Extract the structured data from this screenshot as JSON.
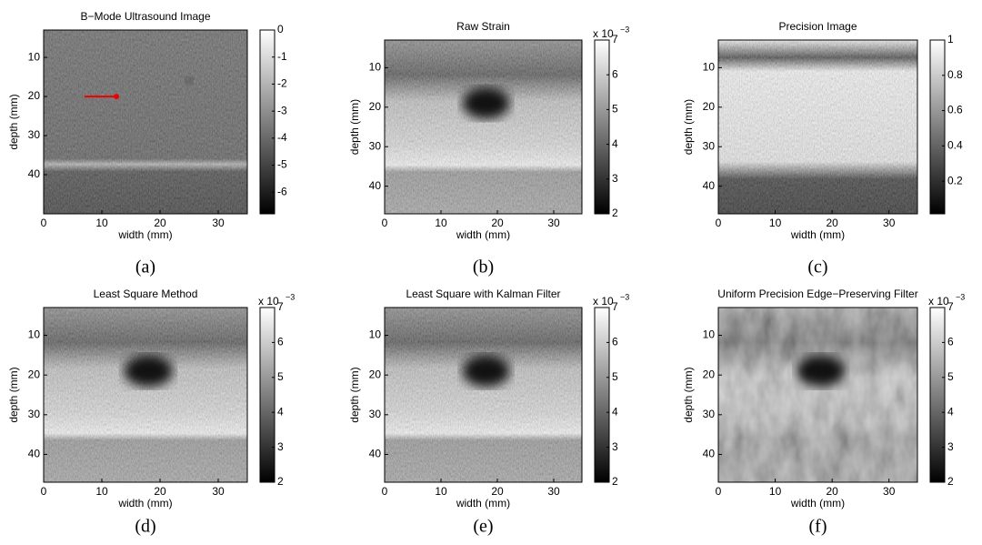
{
  "figure": {
    "panels": [
      {
        "title": "B−Mode Ultrasound Image",
        "caption": "(a)",
        "xlabel": "width (mm)",
        "ylabel": "depth (mm)",
        "xlim": [
          0,
          35
        ],
        "ylim": [
          3,
          50
        ],
        "xticks": [
          0,
          10,
          20,
          30
        ],
        "yticks": [
          10,
          20,
          30,
          40
        ],
        "colorbar": {
          "lim": [
            -6.8,
            0
          ],
          "ticks": [
            0,
            -1,
            -2,
            -3,
            -4,
            -5,
            -6
          ]
        }
      },
      {
        "title": "Raw Strain",
        "caption": "(b)",
        "xlabel": "width (mm)",
        "ylabel": "depth (mm)",
        "xlim": [
          0,
          35
        ],
        "ylim": [
          3,
          47
        ],
        "xticks": [
          0,
          10,
          20,
          30
        ],
        "yticks": [
          10,
          20,
          30,
          40
        ],
        "colorbar": {
          "lim": [
            2,
            7
          ],
          "ticks": [
            2,
            3,
            4,
            5,
            6,
            7
          ],
          "scale": "x 10",
          "exponent": "−3"
        }
      },
      {
        "title": "Precision Image",
        "caption": "(c)",
        "xlabel": "width (mm)",
        "ylabel": "depth (mm)",
        "xlim": [
          0,
          35
        ],
        "ylim": [
          3,
          47
        ],
        "xticks": [
          0,
          10,
          20,
          30
        ],
        "yticks": [
          10,
          20,
          30,
          40
        ],
        "colorbar": {
          "lim": [
            0.015,
            1
          ],
          "ticks": [
            0.2,
            0.4,
            0.6,
            0.8,
            1
          ]
        }
      },
      {
        "title": "Least Square Method",
        "caption": "(d)",
        "xlabel": "width (mm)",
        "ylabel": "depth (mm)",
        "xlim": [
          0,
          35
        ],
        "ylim": [
          3,
          47
        ],
        "xticks": [
          0,
          10,
          20,
          30
        ],
        "yticks": [
          10,
          20,
          30,
          40
        ],
        "colorbar": {
          "lim": [
            2,
            7
          ],
          "ticks": [
            2,
            3,
            4,
            5,
            6,
            7
          ],
          "scale": "x 10",
          "exponent": "−3"
        }
      },
      {
        "title": "Least Square with Kalman Filter",
        "caption": "(e)",
        "xlabel": "width (mm)",
        "ylabel": "depth (mm)",
        "xlim": [
          0,
          35
        ],
        "ylim": [
          3,
          47
        ],
        "xticks": [
          0,
          10,
          20,
          30
        ],
        "yticks": [
          10,
          20,
          30,
          40
        ],
        "colorbar": {
          "lim": [
            2,
            7
          ],
          "ticks": [
            2,
            3,
            4,
            5,
            6,
            7
          ],
          "scale": "x 10",
          "exponent": "−3"
        }
      },
      {
        "title": "Uniform Precision Edge−Preserving Filter",
        "caption": "(f)",
        "xlabel": "width (mm)",
        "ylabel": "depth (mm)",
        "xlim": [
          0,
          35
        ],
        "ylim": [
          3,
          47
        ],
        "xticks": [
          0,
          10,
          20,
          30
        ],
        "yticks": [
          10,
          20,
          30,
          40
        ],
        "colorbar": {
          "lim": [
            2,
            7
          ],
          "ticks": [
            2,
            3,
            4,
            5,
            6,
            7
          ],
          "scale": "x 10",
          "exponent": "−3"
        }
      }
    ]
  }
}
